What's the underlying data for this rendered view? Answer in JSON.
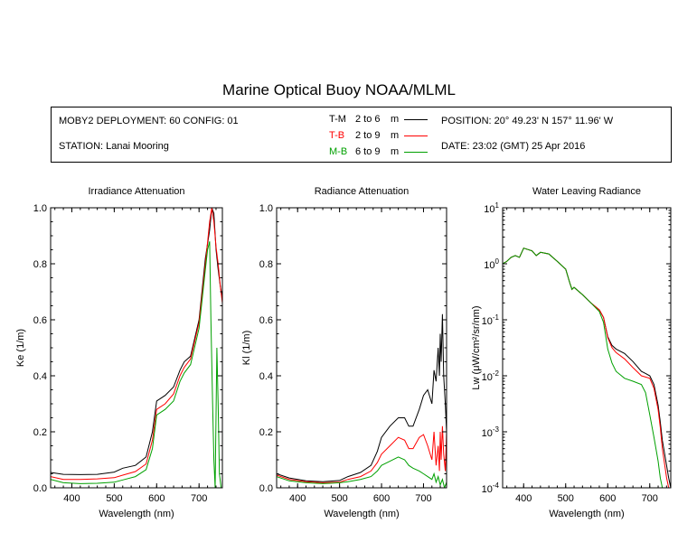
{
  "title": "Marine Optical Buoy NOAA/MLML",
  "info": {
    "deployment": "MOBY2 DEPLOYMENT: 60 CONFIG: 01",
    "station": "STATION: Lanai Mooring",
    "position": "POSITION: 20° 49.23' N   157° 11.96' W",
    "date": "DATE: 23:02 (GMT) 25 Apr 2016",
    "legend": [
      {
        "code": "T-M",
        "range": "2 to 6",
        "unit": "m",
        "color": "#000000"
      },
      {
        "code": "T-B",
        "range": "2 to 9",
        "unit": "m",
        "color": "#ff0000"
      },
      {
        "code": "M-B",
        "range": "6 to 9",
        "unit": "m",
        "color": "#00a000"
      }
    ]
  },
  "chart_data": [
    {
      "type": "line",
      "title": "Irradiance Attenuation",
      "xlabel": "Wavelength (nm)",
      "ylabel": "Ke  (1/m)",
      "xlim": [
        350,
        755
      ],
      "ylim": [
        0,
        1.0
      ],
      "xticks": [
        "400",
        "500",
        "600",
        "700"
      ],
      "yticks": [
        "0.0",
        "0.2",
        "0.4",
        "0.6",
        "0.8",
        "1.0"
      ],
      "series": [
        {
          "name": "T-M",
          "color": "#000000",
          "x": [
            350,
            380,
            420,
            460,
            500,
            520,
            550,
            575,
            590,
            600,
            620,
            640,
            655,
            665,
            680,
            700,
            715,
            725,
            730,
            735,
            740,
            745,
            750,
            755
          ],
          "y": [
            0.055,
            0.048,
            0.047,
            0.048,
            0.056,
            0.07,
            0.08,
            0.11,
            0.2,
            0.31,
            0.33,
            0.36,
            0.42,
            0.45,
            0.47,
            0.6,
            0.82,
            0.92,
            1.0,
            0.98,
            0.85,
            0.78,
            0.72,
            0.68
          ]
        },
        {
          "name": "T-B",
          "color": "#ff0000",
          "x": [
            350,
            380,
            420,
            460,
            500,
            520,
            550,
            575,
            590,
            600,
            620,
            640,
            655,
            665,
            680,
            700,
            715,
            725,
            730,
            735,
            740,
            745,
            750,
            755
          ],
          "y": [
            0.04,
            0.03,
            0.03,
            0.032,
            0.036,
            0.045,
            0.058,
            0.085,
            0.17,
            0.28,
            0.3,
            0.335,
            0.4,
            0.43,
            0.46,
            0.59,
            0.8,
            0.95,
            1.0,
            0.95,
            0.86,
            0.8,
            0.72,
            0.66
          ]
        },
        {
          "name": "M-B",
          "color": "#00a000",
          "x": [
            350,
            380,
            420,
            460,
            500,
            520,
            550,
            575,
            590,
            600,
            620,
            640,
            655,
            665,
            680,
            700,
            715,
            720,
            725,
            728,
            732,
            735,
            738,
            742,
            745,
            748,
            752
          ],
          "y": [
            0.03,
            0.018,
            0.015,
            0.016,
            0.02,
            0.028,
            0.04,
            0.065,
            0.14,
            0.26,
            0.28,
            0.31,
            0.38,
            0.41,
            0.44,
            0.57,
            0.78,
            0.85,
            0.88,
            0.6,
            0.3,
            0.1,
            0.0,
            0.5,
            0.3,
            0.05,
            0.0
          ]
        }
      ]
    },
    {
      "type": "line",
      "title": "Radiance Attenuation",
      "xlabel": "Wavelength (nm)",
      "ylabel": "Kl  (1/m)",
      "xlim": [
        350,
        755
      ],
      "ylim": [
        0,
        1.0
      ],
      "xticks": [
        "400",
        "500",
        "600",
        "700"
      ],
      "yticks": [
        "0.0",
        "0.2",
        "0.4",
        "0.6",
        "0.8",
        "1.0"
      ],
      "series": [
        {
          "name": "T-M",
          "color": "#000000",
          "x": [
            350,
            380,
            420,
            460,
            500,
            520,
            550,
            575,
            590,
            600,
            620,
            640,
            655,
            665,
            675,
            690,
            700,
            710,
            720,
            725,
            730,
            735,
            738,
            740,
            742,
            745,
            748,
            752,
            755
          ],
          "y": [
            0.05,
            0.035,
            0.025,
            0.022,
            0.026,
            0.04,
            0.055,
            0.08,
            0.13,
            0.18,
            0.22,
            0.25,
            0.25,
            0.22,
            0.22,
            0.28,
            0.33,
            0.35,
            0.3,
            0.42,
            0.38,
            0.5,
            0.4,
            0.55,
            0.45,
            0.62,
            0.4,
            0.3,
            0.2
          ]
        },
        {
          "name": "T-B",
          "color": "#ff0000",
          "x": [
            350,
            380,
            420,
            460,
            500,
            520,
            550,
            575,
            590,
            600,
            620,
            640,
            655,
            665,
            675,
            690,
            700,
            710,
            720,
            725,
            730,
            735,
            738,
            740,
            742,
            745,
            748,
            752,
            755
          ],
          "y": [
            0.045,
            0.03,
            0.022,
            0.018,
            0.02,
            0.03,
            0.04,
            0.06,
            0.09,
            0.12,
            0.15,
            0.18,
            0.17,
            0.14,
            0.14,
            0.18,
            0.19,
            0.15,
            0.1,
            0.2,
            0.08,
            0.15,
            0.06,
            0.2,
            0.1,
            0.22,
            0.12,
            0.06,
            0.2
          ]
        },
        {
          "name": "M-B",
          "color": "#00a000",
          "x": [
            350,
            380,
            420,
            460,
            500,
            520,
            550,
            575,
            590,
            600,
            620,
            640,
            655,
            665,
            675,
            690,
            700,
            710,
            720,
            725,
            730,
            735,
            740,
            745,
            750,
            755
          ],
          "y": [
            0.04,
            0.025,
            0.018,
            0.015,
            0.018,
            0.022,
            0.03,
            0.04,
            0.06,
            0.08,
            0.095,
            0.11,
            0.1,
            0.08,
            0.07,
            0.06,
            0.05,
            0.04,
            0.03,
            0.05,
            0.02,
            0.04,
            0.01,
            0.03,
            0.0,
            0.02
          ]
        }
      ]
    },
    {
      "type": "line",
      "title": "Water Leaving Radiance",
      "xlabel": "Wavelength (nm)",
      "ylabel": "Lw  (μW/cm²/sr/nm)",
      "xscale": "linear",
      "yscale": "log",
      "xlim": [
        350,
        750
      ],
      "ylim": [
        0.0001,
        10
      ],
      "xticks": [
        "400",
        "500",
        "600",
        "700"
      ],
      "yticks": [
        {
          "base": "10",
          "exp": "-4"
        },
        {
          "base": "10",
          "exp": "-3"
        },
        {
          "base": "10",
          "exp": "-2"
        },
        {
          "base": "10",
          "exp": "-1"
        },
        {
          "base": "10",
          "exp": "0"
        },
        {
          "base": "10",
          "exp": "1"
        }
      ],
      "series": [
        {
          "name": "T-M",
          "color": "#000000",
          "x": [
            350,
            360,
            370,
            380,
            390,
            400,
            410,
            420,
            430,
            440,
            460,
            480,
            500,
            510,
            515,
            520,
            540,
            560,
            580,
            590,
            600,
            610,
            620,
            640,
            660,
            680,
            690,
            700,
            710,
            720,
            725,
            730,
            740,
            745,
            750
          ],
          "y": [
            1.0,
            1.1,
            1.3,
            1.4,
            1.3,
            1.9,
            1.8,
            1.7,
            1.4,
            1.6,
            1.5,
            1.1,
            0.8,
            0.45,
            0.35,
            0.38,
            0.28,
            0.2,
            0.15,
            0.11,
            0.05,
            0.035,
            0.03,
            0.025,
            0.018,
            0.012,
            0.011,
            0.01,
            0.007,
            0.003,
            0.0015,
            0.0007,
            0.00025,
            0.00015,
            0.0001
          ]
        },
        {
          "name": "T-B",
          "color": "#ff0000",
          "x": [
            350,
            360,
            370,
            380,
            390,
            400,
            410,
            420,
            430,
            440,
            460,
            480,
            500,
            510,
            515,
            520,
            540,
            560,
            580,
            590,
            600,
            610,
            620,
            640,
            660,
            680,
            690,
            700,
            710,
            720,
            725,
            730,
            740,
            745,
            750
          ],
          "y": [
            1.0,
            1.1,
            1.3,
            1.4,
            1.3,
            1.9,
            1.8,
            1.7,
            1.4,
            1.6,
            1.5,
            1.1,
            0.8,
            0.45,
            0.35,
            0.38,
            0.28,
            0.2,
            0.15,
            0.11,
            0.048,
            0.032,
            0.026,
            0.02,
            0.014,
            0.01,
            0.0095,
            0.009,
            0.006,
            0.0025,
            0.0012,
            0.0005,
            0.00015,
            0.0001,
            0.0001
          ]
        },
        {
          "name": "M-B",
          "color": "#00a000",
          "x": [
            350,
            360,
            370,
            380,
            390,
            400,
            410,
            420,
            430,
            440,
            460,
            480,
            500,
            510,
            515,
            520,
            540,
            560,
            580,
            590,
            600,
            610,
            620,
            640,
            660,
            680,
            690,
            700,
            710,
            720,
            725,
            730,
            735,
            740
          ],
          "y": [
            1.0,
            1.1,
            1.3,
            1.4,
            1.3,
            1.9,
            1.8,
            1.7,
            1.4,
            1.6,
            1.5,
            1.1,
            0.8,
            0.45,
            0.35,
            0.38,
            0.28,
            0.2,
            0.14,
            0.09,
            0.03,
            0.017,
            0.012,
            0.009,
            0.008,
            0.007,
            0.005,
            0.002,
            0.0008,
            0.0003,
            0.00015,
            0.0001,
            0.0001,
            0.0001
          ]
        }
      ]
    }
  ]
}
